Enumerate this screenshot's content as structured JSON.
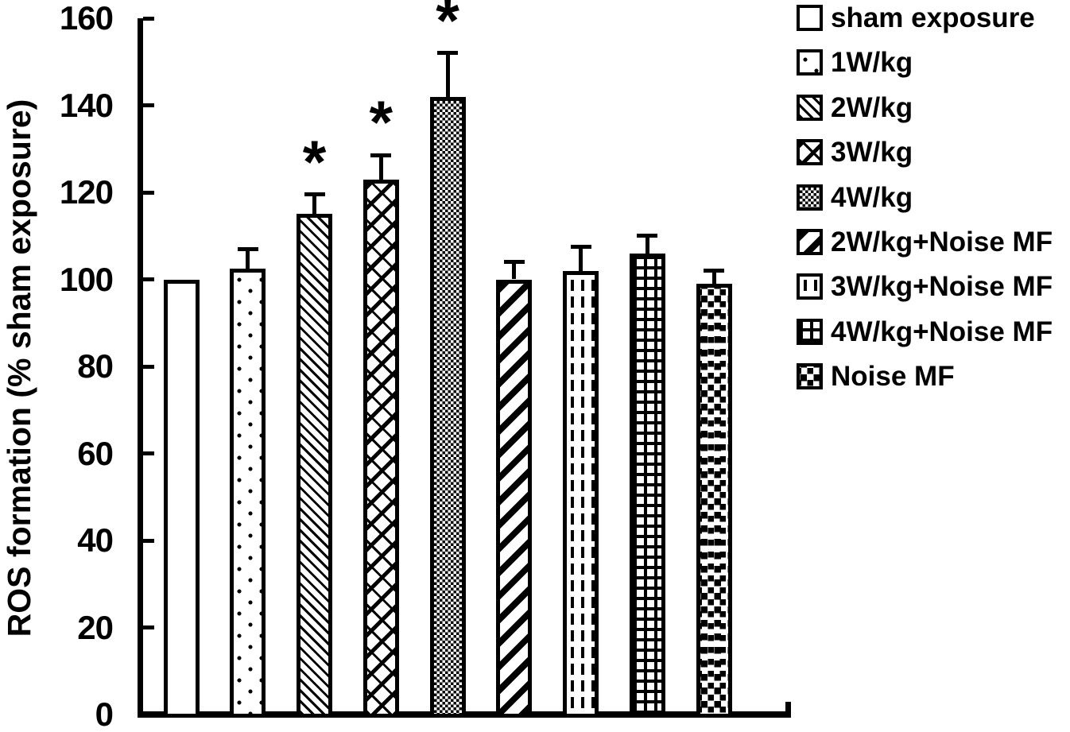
{
  "figure": {
    "kind": "scientific-bar-chart",
    "background_color": "#ffffff",
    "foreground_color": "#000000"
  },
  "y_axis": {
    "label": "ROS formation (% sham exposure)",
    "tick_labels": [
      "0",
      "20",
      "40",
      "60",
      "80",
      "100",
      "120",
      "140",
      "160"
    ],
    "min": 0,
    "max": 160,
    "step": 20
  },
  "significance_marker": "*",
  "legend": {
    "items": [
      {
        "label": "sham exposure",
        "pattern": "plain",
        "swatch_icon": "open-square-swatch"
      },
      {
        "label": "1W/kg",
        "pattern": "dots",
        "swatch_icon": "dotted-swatch"
      },
      {
        "label": "2W/kg",
        "pattern": "hatch-back",
        "swatch_icon": "backslash-hatch-swatch"
      },
      {
        "label": "3W/kg",
        "pattern": "shingle",
        "swatch_icon": "shingle-hatch-swatch"
      },
      {
        "label": "4W/kg",
        "pattern": "checker",
        "swatch_icon": "fine-checker-swatch"
      },
      {
        "label": "2W/kg+Noise MF",
        "pattern": "hatch-fwd",
        "swatch_icon": "forward-hatch-swatch"
      },
      {
        "label": "3W/kg+Noise MF",
        "pattern": "dash-vert",
        "swatch_icon": "vertical-dash-swatch"
      },
      {
        "label": "4W/kg+Noise MF",
        "pattern": "grid",
        "swatch_icon": "grid-swatch"
      },
      {
        "label": "Noise MF",
        "pattern": "random",
        "swatch_icon": "random-squares-swatch"
      }
    ]
  },
  "chart_data": {
    "type": "bar",
    "title": "",
    "xlabel": "",
    "ylabel": "ROS formation (% sham exposure)",
    "ylim": [
      0,
      160
    ],
    "ytick_step": 20,
    "grid": false,
    "legend_position": "right",
    "categories": [
      "sham exposure",
      "1W/kg",
      "2W/kg",
      "3W/kg",
      "4W/kg",
      "2W/kg+Noise MF",
      "3W/kg+Noise MF",
      "4W/kg+Noise MF",
      "Noise MF"
    ],
    "values": [
      100,
      102.5,
      115,
      123,
      142,
      100,
      102,
      106,
      99
    ],
    "errors_upper": [
      0,
      4.5,
      4.5,
      5.5,
      10,
      4,
      5.5,
      4,
      3
    ],
    "significant": [
      false,
      false,
      true,
      true,
      true,
      false,
      false,
      false,
      false
    ],
    "patterns": [
      "plain",
      "dots",
      "hatch-back",
      "shingle",
      "checker",
      "hatch-fwd",
      "dash-vert",
      "grid",
      "random"
    ],
    "bar_fill_style": "black-and-white hatch patterns, 5px black outlines",
    "error_bars": "upper only, capped"
  }
}
